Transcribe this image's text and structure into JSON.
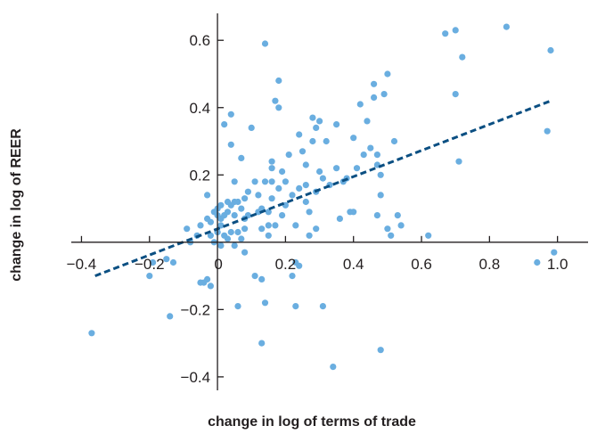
{
  "chart_data": {
    "type": "scatter",
    "title": "",
    "xlabel": "change in log of terms of trade",
    "ylabel": "change in log of REER",
    "xlim": [
      -0.43,
      1.09
    ],
    "ylim": [
      -0.44,
      0.68
    ],
    "x_ticks": [
      {
        "value": -0.4,
        "label": "−0.4"
      },
      {
        "value": -0.2,
        "label": "−0.2"
      },
      {
        "value": 0,
        "label": "0"
      },
      {
        "value": 0.2,
        "label": "0.2"
      },
      {
        "value": 0.4,
        "label": "0.4"
      },
      {
        "value": 0.6,
        "label": "0.6"
      },
      {
        "value": 0.8,
        "label": "0.8"
      },
      {
        "value": 1.0,
        "label": "1.0"
      }
    ],
    "y_ticks": [
      {
        "value": -0.4,
        "label": "−0.4"
      },
      {
        "value": -0.2,
        "label": "−0.2"
      },
      {
        "value": 0,
        "label": "0"
      },
      {
        "value": 0.2,
        "label": "0.2"
      },
      {
        "value": 0.4,
        "label": "0.4"
      },
      {
        "value": 0.6,
        "label": "0.6"
      }
    ],
    "grid": false,
    "colors": {
      "points": "#6aaee0",
      "trend": "#0b4f82",
      "axis": "#231f20"
    },
    "trendline": {
      "x": [
        -0.36,
        0.98
      ],
      "y": [
        -0.1,
        0.42
      ]
    },
    "points": [
      [
        -0.37,
        -0.27
      ],
      [
        -0.2,
        -0.1
      ],
      [
        -0.19,
        -0.06
      ],
      [
        -0.15,
        -0.05
      ],
      [
        -0.14,
        -0.22
      ],
      [
        -0.13,
        -0.06
      ],
      [
        -0.09,
        0.04
      ],
      [
        -0.08,
        0.0
      ],
      [
        -0.06,
        0.02
      ],
      [
        -0.05,
        0.05
      ],
      [
        -0.05,
        -0.12
      ],
      [
        -0.04,
        -0.12
      ],
      [
        -0.03,
        0.14
      ],
      [
        -0.03,
        0.07
      ],
      [
        -0.03,
        -0.11
      ],
      [
        -0.02,
        -0.13
      ],
      [
        -0.02,
        0.02
      ],
      [
        -0.02,
        0.06
      ],
      [
        -0.01,
        0.09
      ],
      [
        -0.01,
        0.0
      ],
      [
        0.0,
        0.03
      ],
      [
        0.0,
        0.1
      ],
      [
        0.0,
        0.08
      ],
      [
        0.0,
        0.03
      ],
      [
        0.01,
        0.05
      ],
      [
        0.01,
        0.11
      ],
      [
        0.01,
        0.07
      ],
      [
        0.01,
        -0.01
      ],
      [
        0.02,
        0.02
      ],
      [
        0.02,
        0.35
      ],
      [
        0.02,
        0.08
      ],
      [
        0.03,
        0.09
      ],
      [
        0.03,
        0.01
      ],
      [
        0.03,
        0.12
      ],
      [
        0.04,
        0.38
      ],
      [
        0.04,
        0.03
      ],
      [
        0.04,
        0.11
      ],
      [
        0.04,
        0.29
      ],
      [
        0.05,
        0.18
      ],
      [
        0.05,
        0.12
      ],
      [
        0.05,
        0.08
      ],
      [
        0.05,
        -0.01
      ],
      [
        0.06,
        0.12
      ],
      [
        0.06,
        0.03
      ],
      [
        0.06,
        -0.19
      ],
      [
        0.07,
        0.01
      ],
      [
        0.07,
        0.25
      ],
      [
        0.07,
        0.1
      ],
      [
        0.08,
        0.13
      ],
      [
        0.08,
        0.07
      ],
      [
        0.08,
        0.04
      ],
      [
        0.08,
        -0.03
      ],
      [
        0.09,
        0.15
      ],
      [
        0.09,
        0.08
      ],
      [
        0.1,
        0.34
      ],
      [
        0.11,
        0.18
      ],
      [
        0.11,
        -0.1
      ],
      [
        0.12,
        0.09
      ],
      [
        0.12,
        0.14
      ],
      [
        0.13,
        -0.3
      ],
      [
        0.13,
        0.04
      ],
      [
        0.13,
        0.1
      ],
      [
        0.13,
        -0.11
      ],
      [
        0.14,
        0.59
      ],
      [
        0.14,
        0.18
      ],
      [
        0.14,
        -0.18
      ],
      [
        0.15,
        0.05
      ],
      [
        0.15,
        0.09
      ],
      [
        0.15,
        0.02
      ],
      [
        0.16,
        0.24
      ],
      [
        0.16,
        0.22
      ],
      [
        0.16,
        0.18
      ],
      [
        0.16,
        0.13
      ],
      [
        0.17,
        0.42
      ],
      [
        0.17,
        0.05
      ],
      [
        0.18,
        0.48
      ],
      [
        0.18,
        0.4
      ],
      [
        0.18,
        0.16
      ],
      [
        0.19,
        0.21
      ],
      [
        0.19,
        0.08
      ],
      [
        0.2,
        0.18
      ],
      [
        0.2,
        0.11
      ],
      [
        0.21,
        0.26
      ],
      [
        0.22,
        0.14
      ],
      [
        0.22,
        -0.1
      ],
      [
        0.23,
        -0.19
      ],
      [
        0.23,
        -0.06
      ],
      [
        0.23,
        0.05
      ],
      [
        0.24,
        0.32
      ],
      [
        0.24,
        0.16
      ],
      [
        0.24,
        -0.07
      ],
      [
        0.25,
        0.27
      ],
      [
        0.26,
        0.23
      ],
      [
        0.26,
        0.17
      ],
      [
        0.26,
        0.12
      ],
      [
        0.27,
        0.09
      ],
      [
        0.27,
        0.02
      ],
      [
        0.28,
        0.37
      ],
      [
        0.28,
        0.3
      ],
      [
        0.29,
        0.34
      ],
      [
        0.29,
        0.15
      ],
      [
        0.29,
        0.04
      ],
      [
        0.3,
        0.21
      ],
      [
        0.3,
        0.36
      ],
      [
        0.31,
        0.19
      ],
      [
        0.31,
        -0.19
      ],
      [
        0.32,
        0.3
      ],
      [
        0.33,
        0.17
      ],
      [
        0.34,
        -0.37
      ],
      [
        0.35,
        0.22
      ],
      [
        0.35,
        0.35
      ],
      [
        0.36,
        0.07
      ],
      [
        0.37,
        0.18
      ],
      [
        0.38,
        0.19
      ],
      [
        0.39,
        0.09
      ],
      [
        0.4,
        0.09
      ],
      [
        0.4,
        0.31
      ],
      [
        0.41,
        0.22
      ],
      [
        0.42,
        0.41
      ],
      [
        0.43,
        0.26
      ],
      [
        0.44,
        0.36
      ],
      [
        0.45,
        0.28
      ],
      [
        0.46,
        0.47
      ],
      [
        0.46,
        0.43
      ],
      [
        0.47,
        0.23
      ],
      [
        0.47,
        0.26
      ],
      [
        0.47,
        0.08
      ],
      [
        0.48,
        -0.32
      ],
      [
        0.48,
        0.2
      ],
      [
        0.48,
        0.14
      ],
      [
        0.49,
        0.44
      ],
      [
        0.5,
        0.04
      ],
      [
        0.5,
        0.5
      ],
      [
        0.51,
        0.02
      ],
      [
        0.52,
        0.3
      ],
      [
        0.53,
        0.08
      ],
      [
        0.54,
        0.05
      ],
      [
        0.62,
        0.02
      ],
      [
        0.67,
        0.62
      ],
      [
        0.7,
        0.63
      ],
      [
        0.7,
        0.44
      ],
      [
        0.71,
        0.24
      ],
      [
        0.72,
        0.55
      ],
      [
        0.85,
        0.64
      ],
      [
        0.94,
        -0.06
      ],
      [
        0.97,
        0.33
      ],
      [
        0.98,
        0.57
      ],
      [
        0.99,
        -0.03
      ]
    ]
  }
}
